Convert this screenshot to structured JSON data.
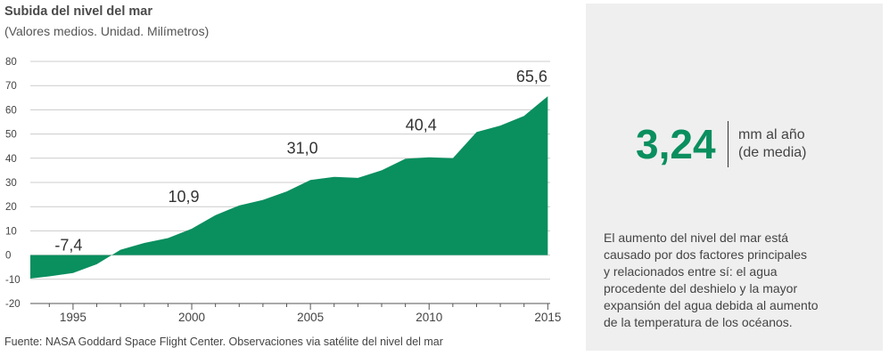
{
  "title": "Subida del nivel del mar",
  "subtitle": "(Valores medios. Unidad. Milímetros)",
  "source": "Fuente: NASA Goddard Space Flight Center. Observaciones via satélite del nivel del mar",
  "highlight": {
    "value": "3,24",
    "unit_line1": "mm al año",
    "unit_line2": "(de media)"
  },
  "description": [
    "El aumento del nivel del mar está",
    "causado por dos factores principales",
    "y relacionados entre sí:  el agua",
    "procedente del deshielo y la mayor",
    "expansión del agua debida al aumento",
    "de la temperatura de los océanos."
  ],
  "colors": {
    "area": "#0a8f5f",
    "accent": "#0a8f5f",
    "panel": "#efefef",
    "grid": "#cccccc"
  },
  "chart_data": {
    "type": "area",
    "title": "Subida del nivel del mar",
    "subtitle": "(Valores medios. Unidad. Milímetros)",
    "xlabel": "",
    "ylabel": "",
    "xlim": [
      1993.2,
      2015.1
    ],
    "ylim": [
      -20,
      80
    ],
    "yticks": [
      80,
      70,
      60,
      50,
      40,
      30,
      20,
      10,
      0,
      -10,
      -20
    ],
    "xticks": [
      1995,
      2000,
      2005,
      2010,
      2015
    ],
    "grid": true,
    "x": [
      1993.2,
      1994,
      1995,
      1996,
      1997,
      1998,
      1999,
      2000,
      2001,
      2002,
      2003,
      2004,
      2005,
      2006,
      2007,
      2008,
      2009,
      2010,
      2011,
      2012,
      2013,
      2014,
      2015
    ],
    "values": [
      -9.7,
      -8.8,
      -7.4,
      -3.8,
      2.2,
      5.0,
      7.0,
      10.9,
      16.5,
      20.5,
      22.8,
      26.3,
      31.0,
      32.3,
      31.9,
      35.0,
      39.8,
      40.4,
      40.0,
      50.8,
      53.5,
      57.5,
      65.6
    ],
    "annotations": [
      {
        "x": 1995,
        "y": -7.4,
        "label": "-7,4"
      },
      {
        "x": 2000,
        "y": 10.9,
        "label": "10,9"
      },
      {
        "x": 2005,
        "y": 31.0,
        "label": "31,0"
      },
      {
        "x": 2010,
        "y": 40.4,
        "label": "40,4"
      },
      {
        "x": 2015,
        "y": 65.6,
        "label": "65,6"
      }
    ]
  }
}
